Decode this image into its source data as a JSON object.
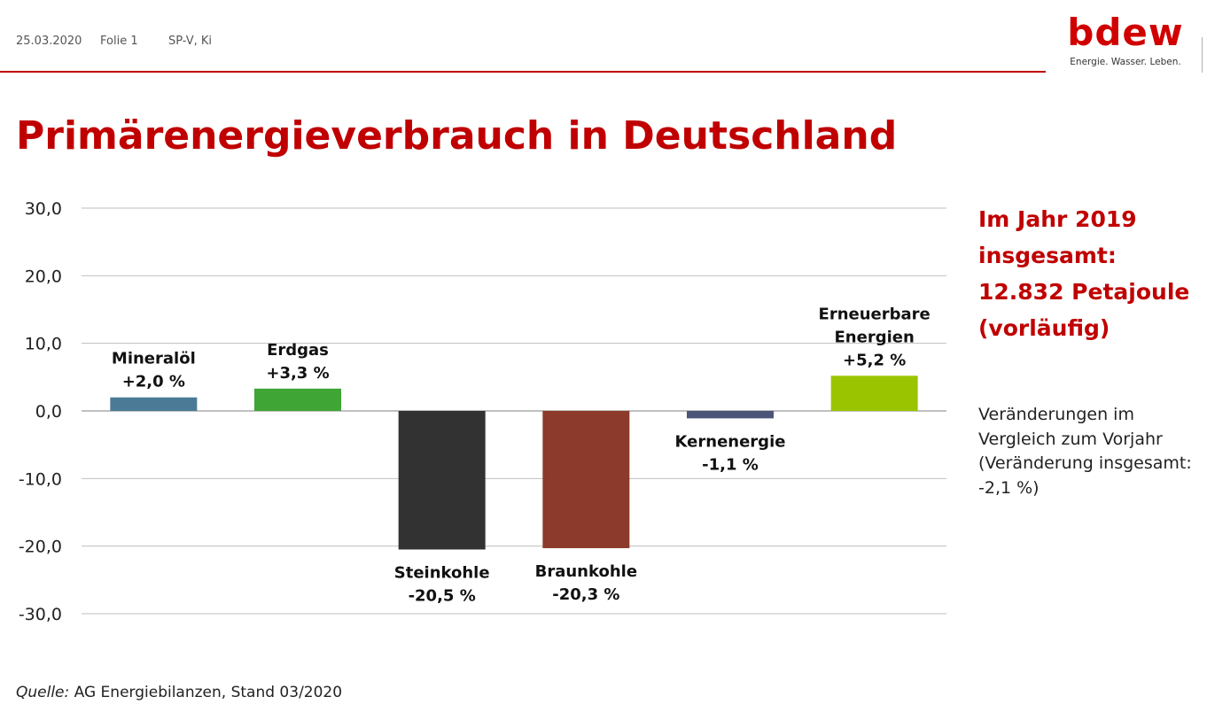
{
  "header": {
    "date": "25.03.2020",
    "slide": "Folie 1",
    "author": "SP-V, Ki",
    "logo_text": "bdew",
    "logo_tagline": "Energie. Wasser. Leben."
  },
  "title": "Primärenergieverbrauch in Deutschland",
  "side_panel": {
    "total_lines": [
      "Im Jahr 2019",
      "insgesamt:",
      "12.832 Petajoule",
      "(vorläufig)"
    ],
    "note_lines": [
      "Veränderungen im",
      "Vergleich zum Vorjahr",
      "(Veränderung insgesamt:",
      "-2,1 %)"
    ]
  },
  "source": {
    "label": "Quelle:",
    "text": " AG Energiebilanzen, Stand 03/2020"
  },
  "colors": {
    "accent": "#c00000",
    "grid": "#bfbfbf"
  },
  "chart_data": {
    "type": "bar",
    "ylim": [
      -30,
      30
    ],
    "yticks": [
      "30,0",
      "20,0",
      "10,0",
      "0,0",
      "-10,0",
      "-20,0",
      "-30,0"
    ],
    "ytick_values": [
      30,
      20,
      10,
      0,
      -10,
      -20,
      -30
    ],
    "categories": [
      "Mineralöl",
      "Erdgas",
      "Steinkohle",
      "Braunkohle",
      "Kernenergie",
      "Erneuerbare Energien"
    ],
    "label_lines": [
      [
        "Mineralöl",
        "+2,0 %"
      ],
      [
        "Erdgas",
        "+3,3 %"
      ],
      [
        "Steinkohle",
        "-20,5 %"
      ],
      [
        "Braunkohle",
        "-20,3 %"
      ],
      [
        "Kernenergie",
        "-1,1 %"
      ],
      [
        "Erneuerbare",
        "Energien",
        "+5,2 %"
      ]
    ],
    "values": [
      2.0,
      3.3,
      -20.5,
      -20.3,
      -1.1,
      5.2
    ],
    "colors": [
      "#4a7a96",
      "#3fa535",
      "#323232",
      "#8c3a2b",
      "#4b5578",
      "#9bc400"
    ],
    "grid": true,
    "legend": "none"
  }
}
